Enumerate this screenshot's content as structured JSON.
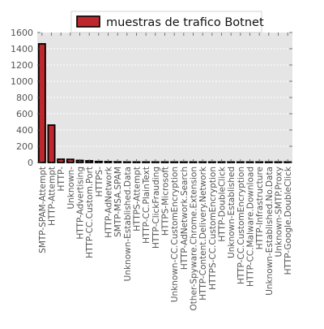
{
  "chart_data": {
    "type": "bar",
    "title": "",
    "xlabel": "",
    "ylabel": "",
    "ylim": [
      0,
      1600
    ],
    "yticks": [
      0,
      200,
      400,
      600,
      800,
      1000,
      1200,
      1400,
      1600
    ],
    "grid": true,
    "legend_position": "top-center",
    "colors": {
      "bar_fill": "#c0272d",
      "bar_edge": "#000000",
      "plot_background": "#e5e5e5",
      "grid": "#ffffff",
      "text": "#555555"
    },
    "categories": [
      "SMTP-SPAM-Attempt",
      "HTTP-Attempt",
      "HTTP-",
      "Unknown-",
      "HTTP-Advertising",
      "HTTP-CC.Custom.Port",
      "HTTPS-",
      "HTTP-AdNetwork",
      "SMTP-MSA.SPAM",
      "Unknown-Established.Data",
      "HTTPS-Attempt",
      "HTTP-CC.PlainText",
      "HTTP-ClickFrauding",
      "HTTPS-Microsoft",
      "Unknown-CC.CustomEncryption",
      "HTTP-AdNetwork.Search",
      "Other-Spyware.Chrome.Extension",
      "HTTP-Content.Delivery.Network",
      "HTTPS-CC.CustomEncryption",
      "HTTP-DoubleClick",
      "Unknown-Established",
      "HTTP-CC.CustomEncryption",
      "HTTP-CC.Malware.Download",
      "HTTP-Infrastructure",
      "Unknown-Established.No.Data",
      "Unknown-SMTP.Proxy",
      "HTTP-Google.DoubleClick"
    ],
    "series": [
      {
        "name": "muestras de trafico Botnet",
        "values": [
          1460,
          460,
          40,
          38,
          25,
          20,
          12,
          10,
          8,
          5,
          4,
          3,
          3,
          3,
          2,
          2,
          2,
          2,
          1,
          1,
          1,
          1,
          1,
          1,
          1,
          1,
          1
        ]
      }
    ]
  }
}
